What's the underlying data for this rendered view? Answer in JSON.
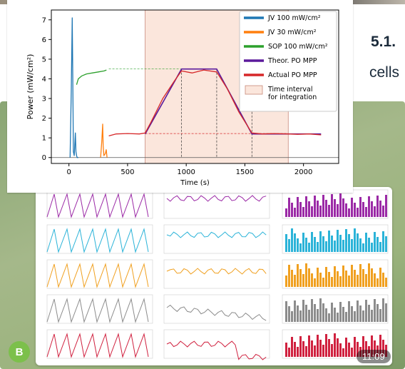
{
  "document": {
    "heading": "5.1.",
    "line_fragment": "cells"
  },
  "chat": {
    "avatar_letter": "B",
    "timestamp": "11:09"
  },
  "colors": {
    "jv100": "#1f77b4",
    "jv30": "#ff7f0e",
    "sop": "#2ca02c",
    "theor": "#5b1a9b",
    "actual": "#d62728",
    "interval_fill": "#fbe6dc",
    "grid_rows": [
      "#9b2aa6",
      "#2bb3d8",
      "#f0a020",
      "#8c8c8c",
      "#d0213f"
    ]
  },
  "chart_data": {
    "type": "line",
    "xlabel": "Time (s)",
    "ylabel": "Power (mW/cm²)",
    "xlim": [
      -150,
      2300
    ],
    "ylim": [
      -0.3,
      7.5
    ],
    "xticks": [
      0,
      500,
      1000,
      1500,
      2000
    ],
    "yticks": [
      0,
      1,
      2,
      3,
      4,
      5,
      6,
      7
    ],
    "legend_position": "top-right",
    "interval": [
      650,
      1870
    ],
    "vlines_dashed": [
      960,
      1260,
      1560
    ],
    "hlines_dashed": [
      {
        "y": 4.5,
        "x": [
          340,
          960
        ]
      },
      {
        "y": 1.22,
        "x": [
          650,
          1870
        ]
      }
    ],
    "legend": [
      {
        "label": "JV 100 mW/cm²",
        "kind": "line",
        "color_key": "jv100"
      },
      {
        "label": "JV   30 mW/cm²",
        "kind": "line",
        "color_key": "jv30"
      },
      {
        "label": "SOP 100 mW/cm²",
        "kind": "line",
        "color_key": "sop"
      },
      {
        "label": "Theor. PO MPP",
        "kind": "line",
        "color_key": "theor"
      },
      {
        "label": "Actual PO MPP",
        "kind": "line",
        "color_key": "actual"
      },
      {
        "label": "Time interval\nfor integration",
        "kind": "box",
        "color_key": "interval_fill"
      }
    ],
    "series": [
      {
        "key": "jv100",
        "x": [
          10,
          20,
          28,
          33,
          38,
          45,
          55,
          60,
          65,
          70,
          80
        ],
        "y": [
          0,
          3.5,
          7.1,
          4.0,
          0.3,
          0.1,
          1.25,
          0.3,
          0.1,
          0,
          0
        ]
      },
      {
        "key": "jv30",
        "x": [
          270,
          280,
          288,
          292,
          298,
          310,
          318,
          325
        ],
        "y": [
          0,
          0.8,
          1.7,
          0.6,
          0.1,
          0.2,
          0.4,
          0
        ]
      },
      {
        "key": "sop",
        "x": [
          65,
          80,
          110,
          150,
          200,
          250,
          300,
          320
        ],
        "y": [
          3.7,
          4.0,
          4.15,
          4.25,
          4.3,
          4.35,
          4.4,
          4.45
        ]
      },
      {
        "key": "theor",
        "x": [
          650,
          960,
          1260,
          1560,
          2150
        ],
        "y": [
          1.2,
          4.5,
          4.5,
          1.2,
          1.2
        ]
      },
      {
        "key": "actual",
        "x": [
          340,
          400,
          500,
          600,
          650,
          700,
          800,
          900,
          960,
          1050,
          1150,
          1260,
          1350,
          1450,
          1560,
          1650,
          1750,
          1870,
          1950,
          2050,
          2150
        ],
        "y": [
          1.1,
          1.2,
          1.22,
          1.2,
          1.25,
          1.8,
          3.0,
          3.9,
          4.4,
          4.3,
          4.45,
          4.35,
          3.5,
          2.3,
          1.25,
          1.2,
          1.22,
          1.2,
          1.18,
          1.2,
          1.15
        ]
      }
    ]
  }
}
